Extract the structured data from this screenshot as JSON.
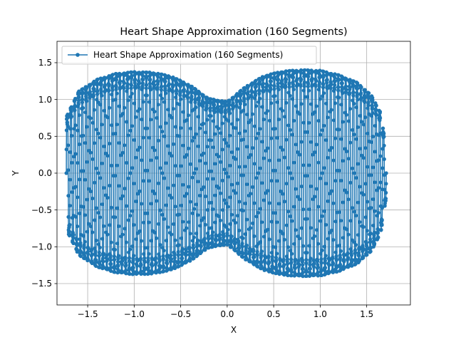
{
  "chart_data": {
    "type": "line",
    "title": "Heart Shape Approximation (160 Segments)",
    "xlabel": "X",
    "ylabel": "Y",
    "xlim": [
      -1.83,
      1.97
    ],
    "ylim": [
      -1.79,
      1.79
    ],
    "xticks": [
      -1.5,
      -1.0,
      -0.5,
      0.0,
      0.5,
      1.0,
      1.5
    ],
    "xtick_labels": [
      "−1.5",
      "−1.0",
      "−0.5",
      "0.0",
      "0.5",
      "1.0",
      "1.5"
    ],
    "yticks": [
      -1.5,
      -1.0,
      -0.5,
      0.0,
      0.5,
      1.0,
      1.5
    ],
    "ytick_labels": [
      "−1.5",
      "−1.0",
      "−0.5",
      "0.0",
      "0.5",
      "1.0",
      "1.5"
    ],
    "grid": true,
    "legend_position": "top-left",
    "series": [
      {
        "name": "Heart Shape Approximation (160 Segments)",
        "color": "#1f77b4",
        "marker": "circle",
        "x_range": [
          -1.73,
          1.71
        ],
        "envelope": [
          [
            -1.73,
            0.88
          ],
          [
            -1.6,
            1.28
          ],
          [
            -1.4,
            1.47
          ],
          [
            -1.2,
            1.56
          ],
          [
            -1.0,
            1.59
          ],
          [
            -0.8,
            1.58
          ],
          [
            -0.6,
            1.52
          ],
          [
            -0.4,
            1.38
          ],
          [
            -0.2,
            1.17
          ],
          [
            0.0,
            1.12
          ],
          [
            0.2,
            1.36
          ],
          [
            0.4,
            1.53
          ],
          [
            0.6,
            1.6
          ],
          [
            0.8,
            1.62
          ],
          [
            1.0,
            1.61
          ],
          [
            1.2,
            1.54
          ],
          [
            1.4,
            1.42
          ],
          [
            1.55,
            1.22
          ],
          [
            1.65,
            0.95
          ],
          [
            1.71,
            0.38
          ]
        ]
      }
    ]
  }
}
